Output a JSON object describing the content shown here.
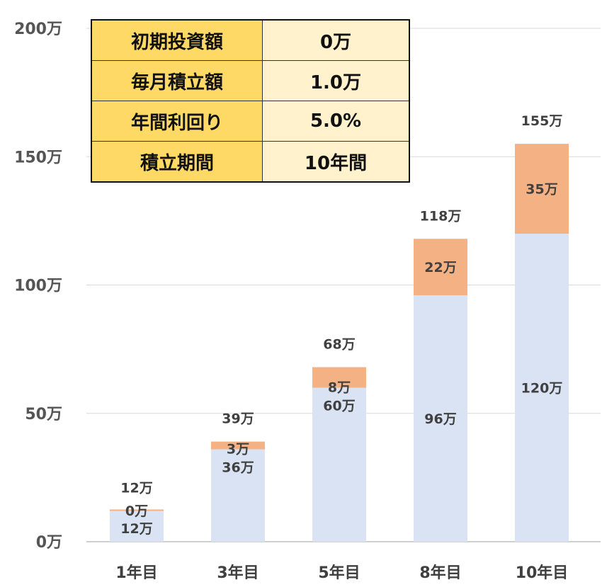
{
  "info_table": [
    {
      "label": "初期投資額",
      "value": "0万"
    },
    {
      "label": "毎月積立額",
      "value": "1.0万"
    },
    {
      "label": "年間利回り",
      "value": "5.0%"
    },
    {
      "label": "積立期間",
      "value": "10年間"
    }
  ],
  "chart_data": {
    "type": "bar",
    "stacked": true,
    "categories": [
      "1年目",
      "3年目",
      "5年目",
      "8年目",
      "10年目"
    ],
    "series": [
      {
        "values": [
          12,
          36,
          60,
          96,
          120
        ],
        "color": "#dae3f3"
      },
      {
        "values": [
          0,
          3,
          8,
          22,
          35
        ],
        "color": "#f4b183"
      }
    ],
    "totals": [
      12,
      39,
      68,
      118,
      155
    ],
    "unit": "万",
    "ylim": [
      0,
      200
    ],
    "yticks": [
      0,
      50,
      100,
      150,
      200
    ],
    "ytick_labels": [
      "0万",
      "50万",
      "100万",
      "150万",
      "200万"
    ],
    "grid": true,
    "title": "",
    "xlabel": "",
    "ylabel": ""
  }
}
